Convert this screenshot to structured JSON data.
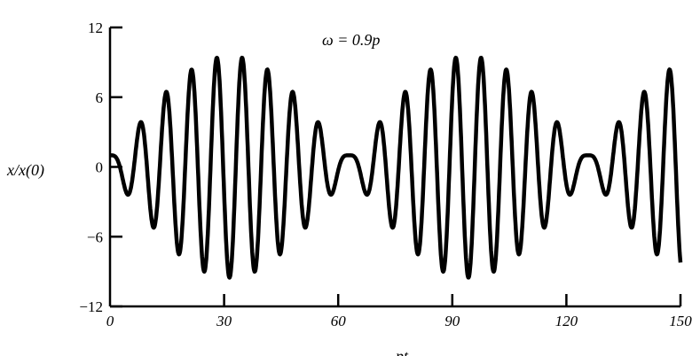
{
  "chart_data": {
    "type": "line",
    "title": "",
    "annotation": "ω = 0.9p",
    "xlabel": "pt",
    "ylabel": "x/x(0)",
    "xlim": [
      0,
      150
    ],
    "ylim": [
      -12,
      12
    ],
    "x_ticks": [
      0,
      30,
      60,
      90,
      120,
      150
    ],
    "x_tick_labels": [
      "0",
      "30",
      "60",
      "90",
      "120",
      "150"
    ],
    "y_ticks": [
      12,
      6,
      0,
      -6,
      -12
    ],
    "y_tick_labels": [
      "12",
      "6",
      "0",
      "−6",
      "−12"
    ],
    "grid": false,
    "series": [
      {
        "description_of_curve": "beating oscillation, x/x(0) = cos(pt) + (cos(ωt) − cos(pt)) / (1 − (ω/p)²)",
        "omega_over_p": 0.9,
        "initial_value": 1,
        "peak_values_read": [
          3,
          6.2,
          8.8,
          10.5,
          11.4,
          10.5,
          8.8,
          6,
          3,
          1,
          3,
          6,
          8.8,
          10.5,
          11,
          10.5,
          8.8,
          6,
          3,
          1,
          3,
          6,
          8.8,
          9.5
        ],
        "color": "#000000"
      }
    ]
  }
}
